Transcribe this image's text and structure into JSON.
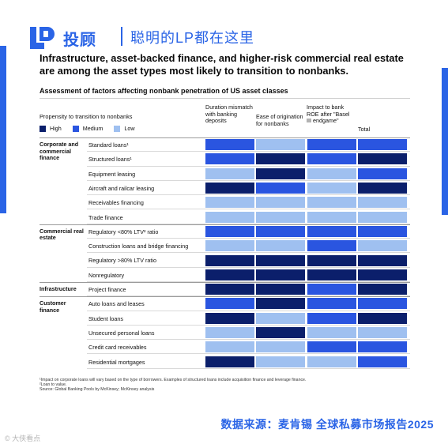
{
  "header": {
    "logo_text": "投顾",
    "slogan": "聪明的LP都在这里"
  },
  "card": {
    "headline": "Infrastructure, asset-backed finance, and higher-risk commercial real estate are among the asset types most likely to transition to nonbanks.",
    "subtitle": "Assessment of factors affecting nonbank penetration of US asset classes",
    "propensity_label": "Propensity to transition to nonbanks",
    "columns": [
      "Duration mismatch with banking deposits",
      "Ease of origination for nonbanks",
      "Impact to bank ROE after \"Basel III endgame\"",
      "Total"
    ],
    "legend": [
      {
        "label": "High",
        "color": "#0b1f6b"
      },
      {
        "label": "Medium",
        "color": "#2a55e0"
      },
      {
        "label": "Low",
        "color": "#9fc0f0"
      }
    ],
    "footnotes": [
      "¹Impact on corporate loans will vary based on the type of borrowers. Examples of structured loans include acquisition finance and leverage finance.",
      "²Loan to value.",
      "Source: Global Banking Pools by McKinsey; McKinsey analysis"
    ]
  },
  "chart_data": {
    "type": "heatmap",
    "title": "Assessment of factors affecting nonbank penetration of US asset classes",
    "levels": [
      "High",
      "Medium",
      "Low"
    ],
    "columns": [
      "Duration mismatch with banking deposits",
      "Ease of origination for nonbanks",
      "Impact to bank ROE after \"Basel III endgame\"",
      "Total"
    ],
    "groups": [
      {
        "name": "Corporate and commercial finance",
        "rows": [
          {
            "label": "Standard loans¹",
            "values": [
              "Medium",
              "Low",
              "Medium",
              "Medium"
            ]
          },
          {
            "label": "Structured loans¹",
            "values": [
              "Medium",
              "High",
              "Medium",
              "High"
            ]
          },
          {
            "label": "Equipment leasing",
            "values": [
              "Low",
              "High",
              "Low",
              "Medium"
            ]
          },
          {
            "label": "Aircraft and railcar leasing",
            "values": [
              "High",
              "Medium",
              "Low",
              "High"
            ]
          },
          {
            "label": "Receivables financing",
            "values": [
              "Low",
              "Low",
              "Low",
              "Low"
            ]
          },
          {
            "label": "Trade finance",
            "values": [
              "Low",
              "Low",
              "Low",
              "Low"
            ]
          }
        ]
      },
      {
        "name": "Commercial real estate",
        "rows": [
          {
            "label": "Regulatory <80% LTV² ratio",
            "values": [
              "Medium",
              "Medium",
              "Medium",
              "Medium"
            ]
          },
          {
            "label": "Construction loans and bridge financing",
            "values": [
              "Low",
              "Low",
              "Medium",
              "Low"
            ]
          },
          {
            "label": "Regulatory >80% LTV ratio",
            "values": [
              "High",
              "High",
              "High",
              "High"
            ]
          },
          {
            "label": "Nonregulatory",
            "values": [
              "High",
              "High",
              "High",
              "High"
            ]
          }
        ]
      },
      {
        "name": "Infrastructure",
        "rows": [
          {
            "label": "Project finance",
            "values": [
              "High",
              "High",
              "Medium",
              "High"
            ]
          }
        ]
      },
      {
        "name": "Customer finance",
        "rows": [
          {
            "label": "Auto loans and leases",
            "values": [
              "Medium",
              "High",
              "Medium",
              "Medium"
            ]
          },
          {
            "label": "Student loans",
            "values": [
              "High",
              "Low",
              "Medium",
              "High"
            ]
          },
          {
            "label": "Unsecured personal loans",
            "values": [
              "Low",
              "High",
              "Low",
              "Low"
            ]
          },
          {
            "label": "Credit card receivables",
            "values": [
              "Low",
              "Low",
              "Medium",
              "Medium"
            ]
          },
          {
            "label": "Residential mortgages",
            "values": [
              "High",
              "Low",
              "Low",
              "Medium"
            ]
          }
        ]
      }
    ]
  },
  "footer": {
    "source_cn": "数据来源：麦肯锡 全球私募市场报告2025",
    "watermark": "© 大侠看点"
  }
}
